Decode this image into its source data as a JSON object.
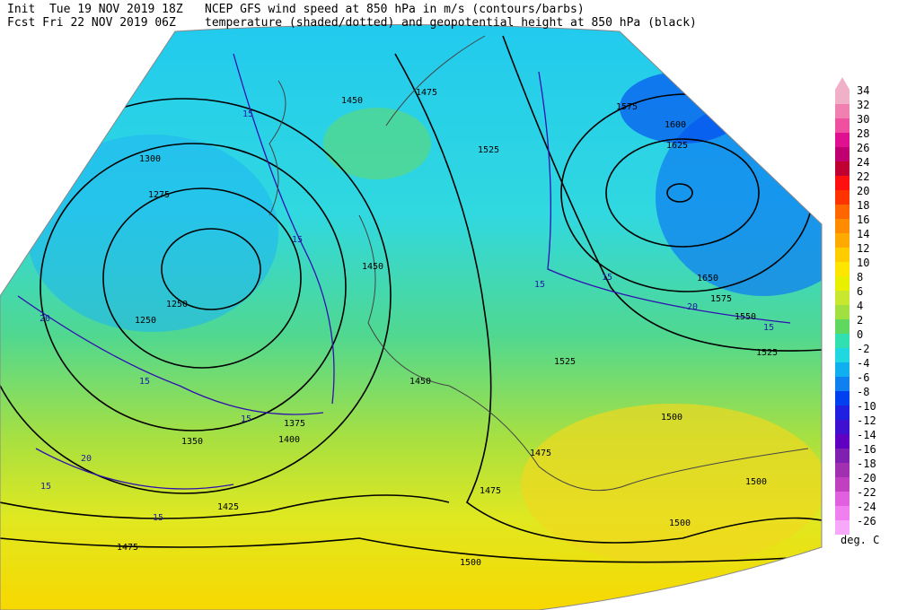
{
  "header": {
    "init": "Init  Tue 19 NOV 2019 18Z",
    "fcst": "Fcst Fri 22 NOV 2019 06Z",
    "title_line1": "NCEP GFS wind speed at 850 hPa in m/s (contours/barbs)",
    "title_line2": "temperature (shaded/dotted) and geopotential height at 850 hPa (black)"
  },
  "map": {
    "height_labels": [
      "1300",
      "1275",
      "1250",
      "1250",
      "1450",
      "1475",
      "1525",
      "1575",
      "1600",
      "1625",
      "1650",
      "1575",
      "1550",
      "1525",
      "1525",
      "1500",
      "1500",
      "1475",
      "1475",
      "1450",
      "1425",
      "1475",
      "1500",
      "1400",
      "1375",
      "1350",
      "1450",
      "1500"
    ],
    "wind_labels": [
      "15",
      "15",
      "15",
      "20",
      "20",
      "15",
      "15",
      "15",
      "15",
      "20",
      "15",
      "15"
    ]
  },
  "colorbar": {
    "ticks": [
      34,
      32,
      30,
      28,
      26,
      24,
      22,
      20,
      18,
      16,
      14,
      12,
      10,
      8,
      6,
      4,
      2,
      0,
      -2,
      -4,
      -6,
      -8,
      -10,
      -12,
      -14,
      -16,
      -18,
      -20,
      -22,
      -24,
      -26
    ],
    "colors": [
      "#f0b0c8",
      "#f080b0",
      "#f050a0",
      "#e01090",
      "#c00070",
      "#c00030",
      "#ff1010",
      "#ff3300",
      "#ff6600",
      "#ff8c00",
      "#ffaa00",
      "#ffcc00",
      "#ffe600",
      "#e8f000",
      "#c8e830",
      "#a0e040",
      "#60d860",
      "#30e0b0",
      "#20d8e0",
      "#10b0f0",
      "#1080f0",
      "#0040f0",
      "#2020e0",
      "#4010d0",
      "#6000c0",
      "#8020b0",
      "#a030b0",
      "#c040c0",
      "#e060e0",
      "#f080f0",
      "#f8a8f8"
    ],
    "unit": "deg. C"
  }
}
